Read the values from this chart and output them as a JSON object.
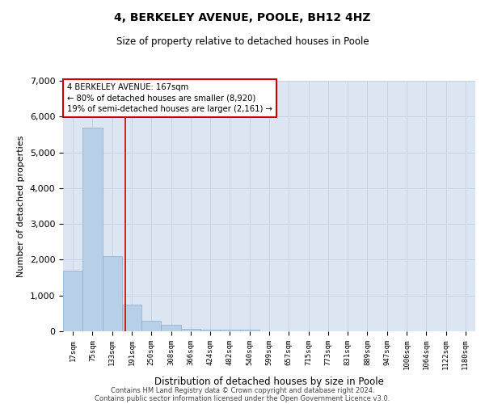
{
  "title": "4, BERKELEY AVENUE, POOLE, BH12 4HZ",
  "subtitle": "Size of property relative to detached houses in Poole",
  "xlabel": "Distribution of detached houses by size in Poole",
  "ylabel": "Number of detached properties",
  "bar_color": "#b8cfe8",
  "bar_edge_color": "#8aaecc",
  "grid_color": "#c8d4e4",
  "background_color": "#dce6f2",
  "bin_labels": [
    "17sqm",
    "75sqm",
    "133sqm",
    "191sqm",
    "250sqm",
    "308sqm",
    "366sqm",
    "424sqm",
    "482sqm",
    "540sqm",
    "599sqm",
    "657sqm",
    "715sqm",
    "773sqm",
    "831sqm",
    "889sqm",
    "947sqm",
    "1006sqm",
    "1064sqm",
    "1122sqm",
    "1180sqm"
  ],
  "bar_values": [
    1700,
    5700,
    2100,
    750,
    300,
    175,
    75,
    50,
    50,
    50,
    0,
    0,
    0,
    0,
    0,
    0,
    0,
    0,
    0,
    0,
    0
  ],
  "ylim": [
    0,
    7000
  ],
  "yticks": [
    0,
    1000,
    2000,
    3000,
    4000,
    5000,
    6000,
    7000
  ],
  "property_line_x": 2.67,
  "property_label": "4 BERKELEY AVENUE: 167sqm",
  "annotation_line1": "← 80% of detached houses are smaller (8,920)",
  "annotation_line2": "19% of semi-detached houses are larger (2,161) →",
  "annotation_box_color": "white",
  "annotation_box_edge": "#cc0000",
  "red_line_color": "#cc0000",
  "footer_line1": "Contains HM Land Registry data © Crown copyright and database right 2024.",
  "footer_line2": "Contains public sector information licensed under the Open Government Licence v3.0."
}
